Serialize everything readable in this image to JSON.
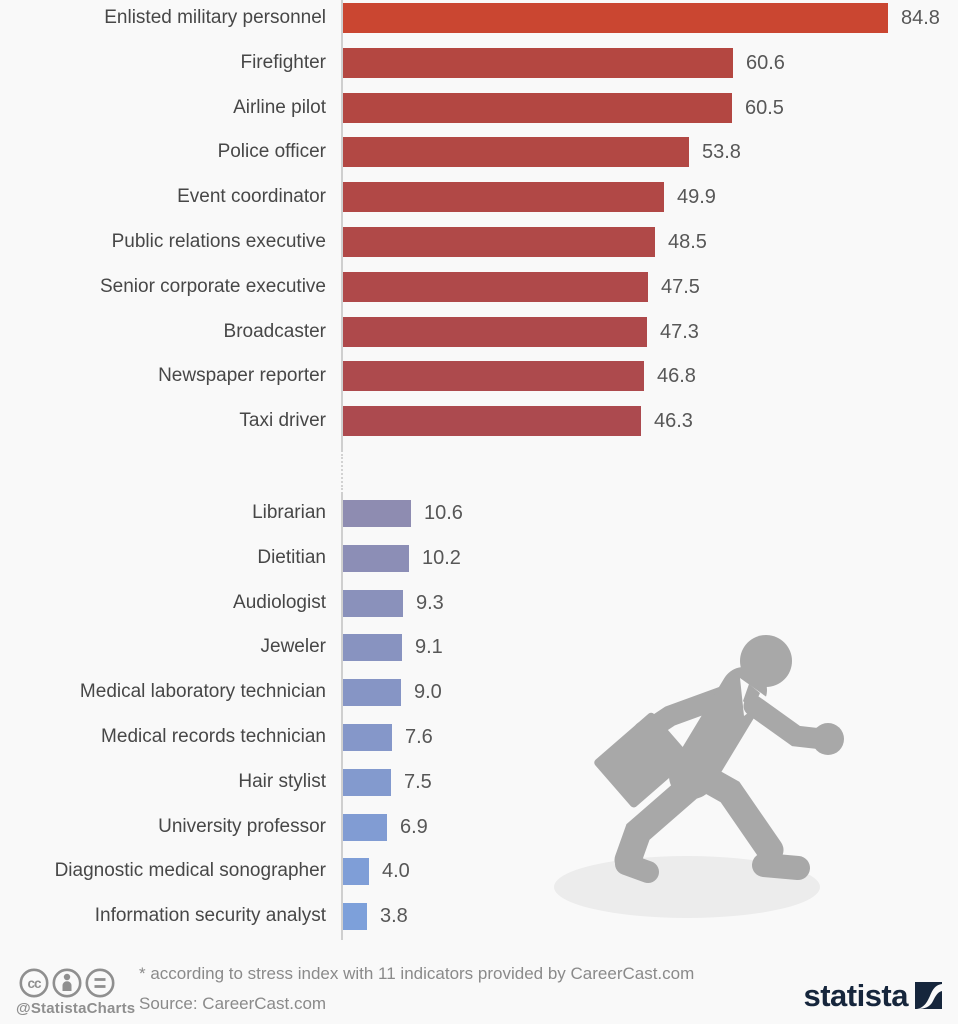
{
  "chart_data": {
    "type": "bar",
    "orientation": "horizontal",
    "value_axis": {
      "min": 0,
      "max_shown_value": 84.8
    },
    "value_label_format": "one_decimal",
    "groups": [
      {
        "id": "top",
        "theme": "red",
        "categories": [
          "Enlisted military personnel",
          "Firefighter",
          "Airline pilot",
          "Police officer",
          "Event coordinator",
          "Public relations executive",
          "Senior corporate executive",
          "Broadcaster",
          "Newspaper reporter",
          "Taxi driver"
        ],
        "values": [
          84.8,
          60.6,
          60.5,
          53.8,
          49.9,
          48.5,
          47.5,
          47.3,
          46.8,
          46.3
        ],
        "bar_colors": [
          "#ca4631",
          "#b44741",
          "#b34742",
          "#b24844",
          "#b14846",
          "#b04948",
          "#af494a",
          "#ae494b",
          "#ad4a4d",
          "#ac4a4f"
        ]
      },
      {
        "id": "bottom",
        "theme": "blue",
        "categories": [
          "Librarian",
          "Dietitian",
          "Audiologist",
          "Jeweler",
          "Medical laboratory technician",
          "Medical records technician",
          "Hair stylist",
          "University professor",
          "Diagnostic medical sonographer",
          "Information security analyst"
        ],
        "values": [
          10.6,
          10.2,
          9.3,
          9.1,
          9.0,
          7.6,
          7.5,
          6.9,
          4.0,
          3.8
        ],
        "bar_colors": [
          "#8e8cb1",
          "#8c8eb6",
          "#8a91bb",
          "#8893c0",
          "#8695c5",
          "#8597c9",
          "#839ace",
          "#819cd3",
          "#7f9ed7",
          "#7da0da"
        ]
      }
    ]
  },
  "footer": {
    "footnote": "* according to stress index with 11 indicators provided by CareerCast.com",
    "source": "Source: CareerCast.com",
    "handle": "@StatistaCharts",
    "license_icons": [
      "cc-icon",
      "attribution-person-icon",
      "equals-icon"
    ],
    "brand": "statista"
  },
  "colors": {
    "background": "#f9f9f9",
    "axis": "#cfcfcf",
    "category_label": "#474747",
    "value_label": "#575757",
    "footer_text": "#8a8a8a",
    "handle_text": "#8f8f8f",
    "brand_navy": "#16263c",
    "figure_gray": "#a8a8a8",
    "figure_shadow": "#ececec"
  }
}
